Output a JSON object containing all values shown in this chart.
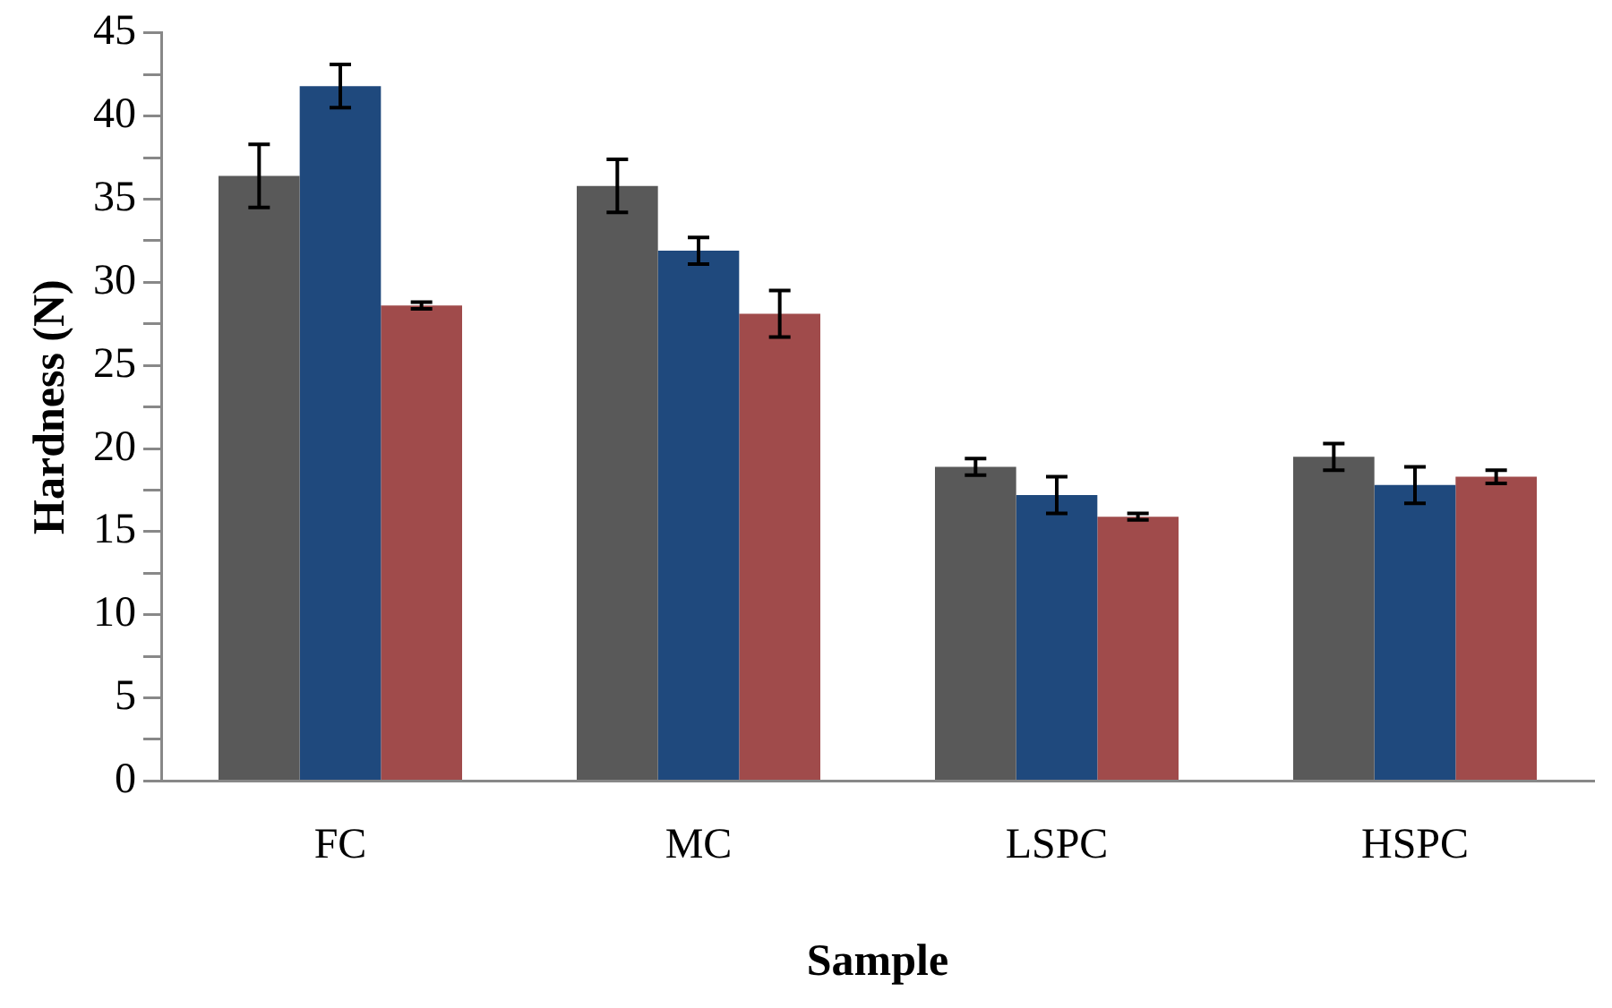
{
  "chart_data": {
    "type": "bar",
    "xlabel": "Sample",
    "ylabel": "Hardness (N)",
    "categories": [
      "FC",
      "MC",
      "LSPC",
      "HSPC"
    ],
    "series": [
      {
        "color": "#595959",
        "values": [
          36.4,
          35.8,
          18.9,
          19.5
        ],
        "errors": [
          1.9,
          1.6,
          0.5,
          0.8
        ]
      },
      {
        "color": "#1f497d",
        "values": [
          41.8,
          31.9,
          17.2,
          17.8
        ],
        "errors": [
          1.3,
          0.8,
          1.1,
          1.1
        ]
      },
      {
        "color": "#a04b4b",
        "values": [
          28.6,
          28.1,
          15.9,
          18.3
        ],
        "errors": [
          0.2,
          1.4,
          0.2,
          0.4
        ]
      }
    ],
    "ylim": [
      0,
      45
    ],
    "yticks": [
      0,
      {
        "value": 2.5,
        "label": null
      },
      5,
      {
        "value": 7.5,
        "label": null
      },
      10,
      {
        "value": 12.5,
        "label": null
      },
      15,
      {
        "value": 17.5,
        "label": null
      },
      20,
      {
        "value": 22.5,
        "label": null
      },
      25,
      {
        "value": 27.5,
        "label": null
      },
      30,
      {
        "value": 32.5,
        "label": null
      },
      35,
      {
        "value": 37.5,
        "label": null
      },
      40,
      {
        "value": 42.5,
        "label": null
      },
      45
    ],
    "grid": false,
    "legend": false
  }
}
